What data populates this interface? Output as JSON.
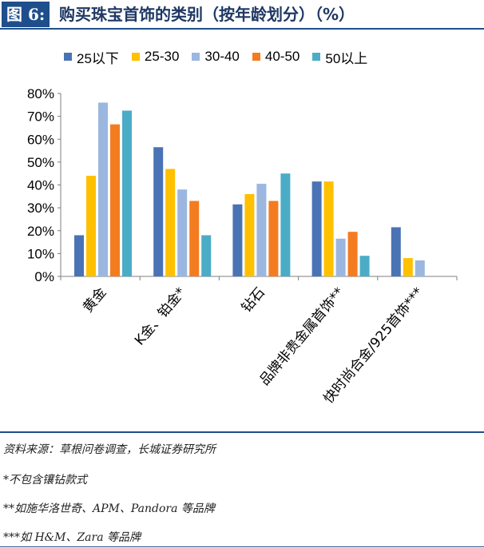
{
  "figure_label": "图 6:",
  "figure_title": "购买珠宝首饰的类别（按年龄划分）（%）",
  "notes": {
    "source": "资料来源：草根问卷调查，长城证券研究所",
    "note1": "*不包含镶钻款式",
    "note2": "**如施华洛世奇、APM、Pandora 等品牌",
    "note3": "***如 H&M、Zara 等品牌"
  },
  "chart_data": {
    "type": "bar",
    "categories": [
      "黄金",
      "K金、铂金*",
      "钻石",
      "品牌非贵金属首饰**",
      "快时尚合金/925首饰***"
    ],
    "y_ticks": [
      "0%",
      "10%",
      "20%",
      "30%",
      "40%",
      "50%",
      "60%",
      "70%",
      "80%"
    ],
    "ylim": [
      0,
      80
    ],
    "y_unit": "%",
    "legend_position": "top",
    "grid": false,
    "series": [
      {
        "name": "25以下",
        "color": "#4a73b5",
        "values": [
          18,
          56.5,
          31.5,
          41.5,
          21.5
        ]
      },
      {
        "name": "25-30",
        "color": "#ffc000",
        "values": [
          44,
          47,
          36,
          41.5,
          8
        ]
      },
      {
        "name": "30-40",
        "color": "#9bb7e0",
        "values": [
          76,
          38,
          40.5,
          16.5,
          7
        ]
      },
      {
        "name": "40-50",
        "color": "#f47c20",
        "values": [
          66.5,
          33,
          33,
          19.5,
          0
        ]
      },
      {
        "name": "50以上",
        "color": "#4bacc6",
        "values": [
          72.5,
          18,
          45,
          9,
          0
        ]
      }
    ]
  }
}
